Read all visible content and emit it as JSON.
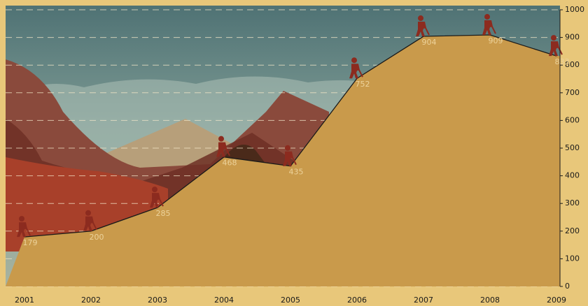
{
  "chart_data": {
    "type": "area",
    "categories": [
      "2001",
      "2002",
      "2003",
      "2004",
      "2005",
      "2006",
      "2007",
      "2008",
      "2009"
    ],
    "values": [
      179,
      200,
      285,
      468,
      435,
      752,
      904,
      909,
      833
    ],
    "color": "#c99a4b",
    "ylim": [
      0,
      1000
    ],
    "yticks": [
      0,
      100,
      200,
      300,
      400,
      500,
      600,
      700,
      800,
      900,
      1000
    ],
    "grid": true
  }
}
